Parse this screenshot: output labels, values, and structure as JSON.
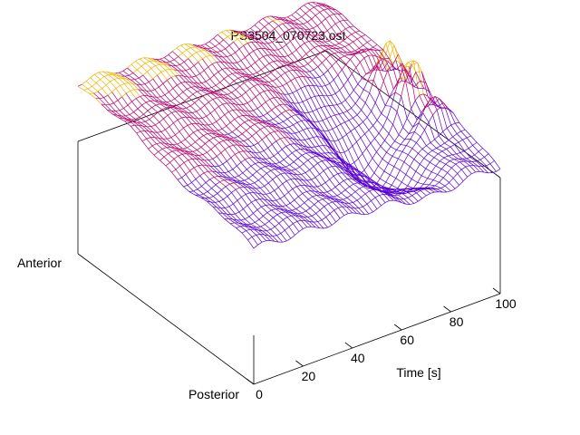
{
  "chart_data": {
    "type": "surface",
    "title": "PS3504_070723.ost",
    "xlabel": "Time [s]",
    "ylabel_front": "Posterior",
    "ylabel_back": "Anterior",
    "xticks": [
      "0",
      "20",
      "40",
      "60",
      "80",
      "100"
    ],
    "xlim": [
      0,
      100
    ],
    "color_low": "#5a00d2",
    "color_mid": "#b4006e",
    "color_high": "#f0b400",
    "surface_description": "Gently rising purple wireframe surface from posterior-front to anterior-back; a trough appears around 60-90 s, followed by sharp orange peaks near 90-100 s."
  }
}
